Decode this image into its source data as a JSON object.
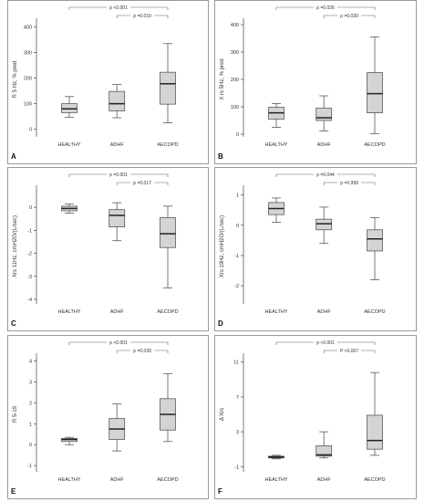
{
  "chart_data": [
    {
      "type": "box",
      "panel": "A",
      "ylabel": "R 5 Hz, % pred",
      "ylim": [
        -30,
        420
      ],
      "yticks": [
        0,
        100,
        200,
        300,
        400
      ],
      "yticklabels": [
        "0",
        "100",
        "200",
        "300",
        "400"
      ],
      "categories": [
        "HEALTHY",
        "ADHF",
        "AECOPD"
      ],
      "boxes": [
        {
          "group": "HEALTHY",
          "min": 47,
          "q1": 65,
          "median": 80,
          "q3": 100,
          "max": 128
        },
        {
          "group": "ADHF",
          "min": 45,
          "q1": 72,
          "median": 100,
          "q3": 148,
          "max": 175
        },
        {
          "group": "AECOPD",
          "min": 25,
          "q1": 98,
          "median": 178,
          "q3": 223,
          "max": 335
        }
      ],
      "brackets": [
        {
          "label": "p <0.001",
          "from": "HEALTHY",
          "to": "AECOPD"
        },
        {
          "label": "p =0.019",
          "from": "ADHF",
          "to": "AECOPD"
        }
      ]
    },
    {
      "type": "box",
      "panel": "B",
      "ylabel": "X rs 5Hz, % pred",
      "ylim": [
        -10,
        410
      ],
      "yticks": [
        0,
        100,
        200,
        300,
        400
      ],
      "yticklabels": [
        "0",
        "100",
        "200",
        "300",
        "400"
      ],
      "categories": [
        "HEALTHY",
        "ADHF",
        "AECOPD"
      ],
      "boxes": [
        {
          "group": "HEALTHY",
          "min": 25,
          "q1": 55,
          "median": 78,
          "q3": 98,
          "max": 112
        },
        {
          "group": "ADHF",
          "min": 12,
          "q1": 50,
          "median": 60,
          "q3": 95,
          "max": 140
        },
        {
          "group": "AECOPD",
          "min": 2,
          "q1": 78,
          "median": 148,
          "q3": 225,
          "max": 355
        }
      ],
      "brackets": [
        {
          "label": "p =0.026",
          "from": "HEALTHY",
          "to": "AECOPD"
        },
        {
          "label": "p =0.030",
          "from": "ADHF",
          "to": "AECOPD"
        }
      ]
    },
    {
      "type": "box",
      "panel": "C",
      "ylabel": "Xrs 11Hz, cmH2O/(L/sec)",
      "ylim": [
        -4.2,
        0.8
      ],
      "yticks": [
        0,
        -1,
        -2,
        -3,
        -4
      ],
      "yticklabels": [
        "0",
        "-1",
        "-2",
        "-3",
        "-4"
      ],
      "categories": [
        "HEALTHY",
        "ADHF",
        "AECOPD"
      ],
      "boxes": [
        {
          "group": "HEALTHY",
          "min": -0.25,
          "q1": -0.15,
          "median": -0.05,
          "q3": 0.05,
          "max": 0.15
        },
        {
          "group": "ADHF",
          "min": -1.45,
          "q1": -0.85,
          "median": -0.35,
          "q3": -0.1,
          "max": 0.2
        },
        {
          "group": "AECOPD",
          "min": -3.5,
          "q1": -1.75,
          "median": -1.15,
          "q3": -0.45,
          "max": 0.05
        }
      ],
      "brackets": [
        {
          "label": "p =0.001",
          "from": "HEALTHY",
          "to": "AECOPD"
        },
        {
          "label": "p =0.017",
          "from": "ADHF",
          "to": "AECOPD"
        }
      ]
    },
    {
      "type": "box",
      "panel": "D",
      "ylabel": "Xrs 19Hz, cmH2O/(L/sec)",
      "ylim": [
        -2.6,
        1.2
      ],
      "yticks": [
        1,
        0,
        -1,
        -2
      ],
      "yticklabels": [
        "1",
        "0",
        "-1",
        "-2"
      ],
      "categories": [
        "HEALTHY",
        "ADHF",
        "AECOPD"
      ],
      "boxes": [
        {
          "group": "HEALTHY",
          "min": 0.1,
          "q1": 0.35,
          "median": 0.55,
          "q3": 0.75,
          "max": 0.9
        },
        {
          "group": "ADHF",
          "min": -0.6,
          "q1": -0.15,
          "median": 0.05,
          "q3": 0.2,
          "max": 0.6
        },
        {
          "group": "AECOPD",
          "min": -1.8,
          "q1": -0.85,
          "median": -0.45,
          "q3": -0.15,
          "max": 0.25
        }
      ],
      "brackets": [
        {
          "label": "p =0.044",
          "from": "HEALTHY",
          "to": "AECOPD"
        },
        {
          "label": "p =0.999",
          "from": "ADHF",
          "to": "AECOPD"
        }
      ]
    },
    {
      "type": "box",
      "panel": "E",
      "ylabel": "R 5-19",
      "ylim": [
        -1.3,
        4.2
      ],
      "yticks": [
        4,
        3,
        2,
        1,
        0,
        -1
      ],
      "yticklabels": [
        "4",
        "3",
        "2",
        "1",
        "0",
        "-1"
      ],
      "categories": [
        "HEALTHY",
        "ADHF",
        "AECOPD"
      ],
      "boxes": [
        {
          "group": "HEALTHY",
          "min": 0.0,
          "q1": 0.15,
          "median": 0.25,
          "q3": 0.3,
          "max": 0.35
        },
        {
          "group": "ADHF",
          "min": -0.3,
          "q1": 0.25,
          "median": 0.75,
          "q3": 1.25,
          "max": 1.95
        },
        {
          "group": "AECOPD",
          "min": 0.15,
          "q1": 0.7,
          "median": 1.45,
          "q3": 2.2,
          "max": 3.4
        }
      ],
      "brackets": [
        {
          "label": "p <0.001",
          "from": "HEALTHY",
          "to": "AECOPD"
        },
        {
          "label": "p =0.030",
          "from": "ADHF",
          "to": "AECOPD"
        }
      ]
    },
    {
      "type": "box",
      "panel": "F",
      "ylabel": "Δ Xrs",
      "ylim": [
        -1.6,
        11.6
      ],
      "yticks": [
        11,
        7,
        3,
        -1
      ],
      "yticklabels": [
        "11",
        "7",
        "3",
        "-1"
      ],
      "categories": [
        "HEALTHY",
        "ADHF",
        "AECOPD"
      ],
      "boxes": [
        {
          "group": "HEALTHY",
          "min": -0.1,
          "q1": 0.0,
          "median": 0.1,
          "q3": 0.2,
          "max": 0.3
        },
        {
          "group": "ADHF",
          "min": 0.0,
          "q1": 0.2,
          "median": 0.35,
          "q3": 1.4,
          "max": 3.0
        },
        {
          "group": "AECOPD",
          "min": 0.3,
          "q1": 1.0,
          "median": 2.0,
          "q3": 4.9,
          "max": 9.8
        }
      ],
      "brackets": [
        {
          "label": "p <0.001",
          "from": "HEALTHY",
          "to": "AECOPD"
        },
        {
          "label": "P <0.007",
          "from": "ADHF",
          "to": "AECOPD"
        }
      ]
    }
  ],
  "colors": {
    "box_fill": "#d4d4d4",
    "stroke": "#595959",
    "border": "#9a9a9a"
  }
}
